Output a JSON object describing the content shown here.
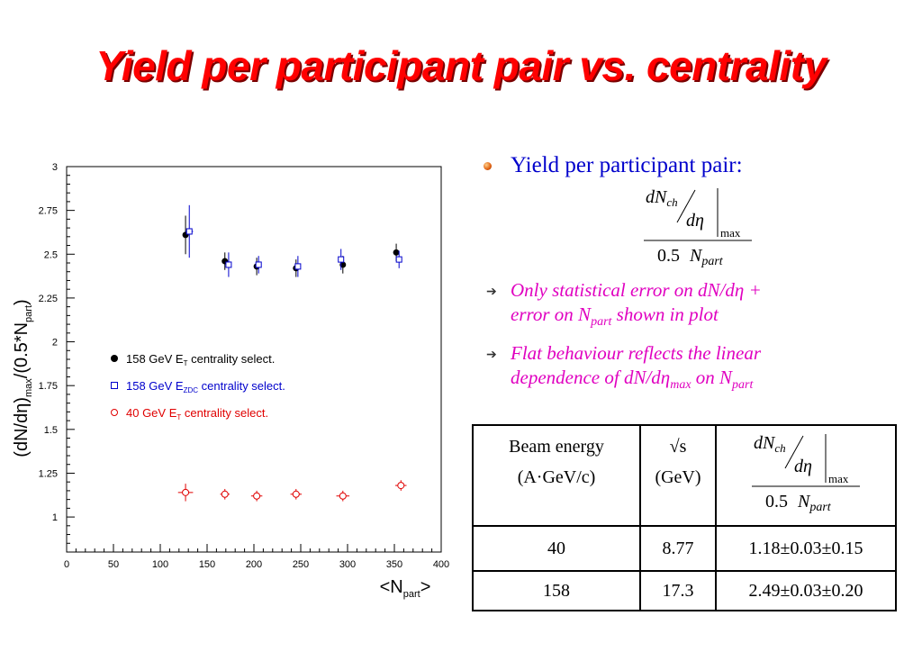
{
  "title": "Yield per participant pair vs. centrality",
  "bullet": {
    "main": "Yield per participant pair:",
    "formula": {
      "num_d": "dN",
      "num_sub": "ch",
      "den_d": "d",
      "eta": "η",
      "max": "max",
      "den": "0.5",
      "N": "N",
      "part": "part"
    },
    "point1": {
      "line1_a": "Only statistical error on dN/d",
      "eta": "η",
      "line1_b": " + ",
      "line2_a": "error on N",
      "sub": "part",
      "line2_b": " shown in plot"
    },
    "point2": {
      "line1": "Flat behaviour reflects the linear",
      "line2_a": "dependence of dN/d",
      "eta": "η",
      "sub_max": "max",
      "line2_b": " on N",
      "sub_part": "part"
    }
  },
  "table": {
    "headers": {
      "col1_l1": "Beam energy",
      "col1_l2": "(A·GeV/c)",
      "col2_l1": "√s",
      "col2_l2": "(GeV)"
    },
    "rows": [
      {
        "energy": "40",
        "sqrt_s": "8.77",
        "yield": "1.18±0.03±0.15"
      },
      {
        "energy": "158",
        "sqrt_s": "17.3",
        "yield": "2.49±0.03±0.20"
      }
    ]
  },
  "chart_data": {
    "type": "scatter",
    "title": "",
    "xlabel": "<Npart>",
    "ylabel": "(dN/dη)max/(0.5*Npart)",
    "xlim": [
      0,
      400
    ],
    "ylim": [
      0.8,
      3
    ],
    "x_ticks": [
      "0",
      "50",
      "100",
      "150",
      "200",
      "250",
      "300",
      "350",
      "400"
    ],
    "y_ticks": [
      "1",
      "1.25",
      "1.5",
      "1.75",
      "2",
      "2.25",
      "2.5",
      "2.75",
      "3"
    ],
    "legend": {
      "placement": "middle-left",
      "entries": [
        {
          "prefix": "158 GeV E",
          "sub": "T",
          "suffix": " centrality select.",
          "color": "#000000"
        },
        {
          "prefix": "158 GeV E",
          "sub": "ZDC",
          "suffix": " centrality select.",
          "color": "#0000cc"
        },
        {
          "prefix": "40 GeV E",
          "sub": "T",
          "suffix": " centrality select.",
          "color": "#e00000"
        }
      ]
    },
    "series": [
      {
        "color": "#000000",
        "marker": "filled-circle",
        "x": [
          127,
          169,
          203,
          245,
          295,
          352
        ],
        "y": [
          2.61,
          2.46,
          2.43,
          2.42,
          2.44,
          2.51
        ],
        "yerr": [
          0.11,
          0.05,
          0.05,
          0.05,
          0.05,
          0.05
        ]
      },
      {
        "color": "#0000cc",
        "marker": "open-square",
        "x": [
          131,
          173,
          205,
          247,
          293,
          355
        ],
        "y": [
          2.63,
          2.44,
          2.44,
          2.43,
          2.47,
          2.47
        ],
        "yerr": [
          0.15,
          0.07,
          0.05,
          0.06,
          0.06,
          0.05
        ],
        "xerr": [
          4,
          3,
          3,
          3,
          3,
          3
        ]
      },
      {
        "color": "#e00000",
        "marker": "open-circle",
        "x": [
          127,
          169,
          203,
          245,
          295,
          357
        ],
        "y": [
          1.14,
          1.13,
          1.12,
          1.13,
          1.12,
          1.18
        ],
        "yerr": [
          0.05,
          0.03,
          0.03,
          0.03,
          0.03,
          0.03
        ],
        "xerr": [
          8,
          5,
          6,
          6,
          7,
          6
        ]
      }
    ]
  }
}
